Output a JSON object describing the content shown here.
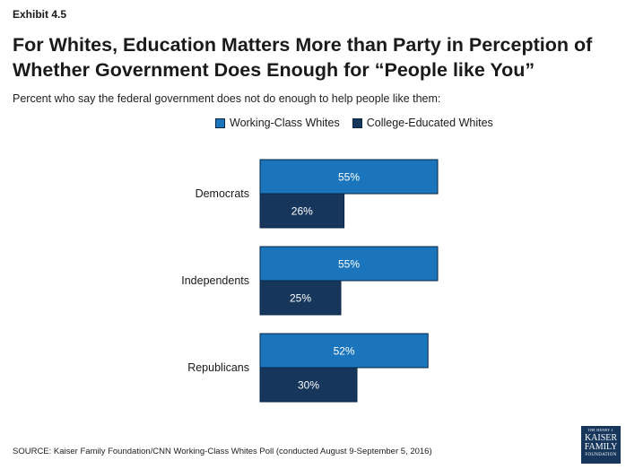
{
  "exhibit": "Exhibit 4.5",
  "title": "For Whites, Education Matters More than Party in Perception of Whether Government Does Enough for “People like You”",
  "subtitle": "Percent who say the federal government does not do enough to help people like them:",
  "source": "SOURCE: Kaiser Family Foundation/CNN Working-Class Whites Poll (conducted August 9-September 5, 2016)",
  "logo": {
    "line1": "THE HENRY J.",
    "line2": "KAISER",
    "line3": "FAMILY",
    "line4": "FOUNDATION"
  },
  "colors": {
    "working_class": "#1a75bc",
    "college": "#16365c",
    "bar_border": "#0b2545"
  },
  "chart_data": {
    "type": "bar",
    "orientation": "horizontal",
    "categories": [
      "Democrats",
      "Independents",
      "Republicans"
    ],
    "series": [
      {
        "name": "Working-Class Whites",
        "values": [
          55,
          55,
          52
        ],
        "color": "#1a75bc"
      },
      {
        "name": "College-Educated Whites",
        "values": [
          26,
          25,
          30
        ],
        "color": "#16365c"
      }
    ],
    "value_suffix": "%",
    "xlim": [
      0,
      100
    ],
    "grid": false,
    "legend_position": "top"
  }
}
